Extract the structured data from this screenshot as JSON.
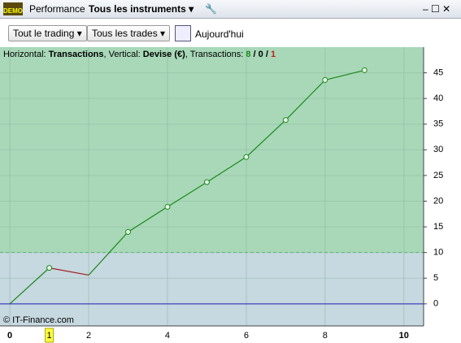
{
  "toolbar": {
    "tab": "Performance",
    "instrument": "Tous les instruments",
    "filter1": "Tout le trading",
    "filter2": "Tous les trades",
    "date": "Aujourd'hui"
  },
  "chart_data": {
    "type": "line",
    "header": {
      "h_label": "Horizontal: ",
      "h_value": "Transactions",
      "v_label": ", Vertical: ",
      "v_value": "Devise (€)",
      "t_label": ", Transactions: ",
      "wins": "8",
      "sep1": " / ",
      "even": "0",
      "sep2": " / ",
      "losses": "1"
    },
    "copyright": "© IT-Finance.com",
    "x": [
      0,
      1,
      2,
      3,
      4,
      5,
      6,
      7,
      8,
      9
    ],
    "series": [
      {
        "name": "Performance",
        "color": "#1a8a1a",
        "down_color": "#a02020",
        "values": [
          0,
          7.0,
          5.6,
          14.0,
          18.9,
          23.7,
          28.6,
          35.8,
          43.6,
          45.5
        ]
      }
    ],
    "xlim": [
      -0.25,
      10.5
    ],
    "ylim": [
      -4.3,
      50
    ],
    "xticks": [
      0,
      1,
      2,
      4,
      6,
      8,
      10
    ],
    "yticks": [
      0,
      5,
      10,
      15,
      20,
      25,
      30,
      35,
      40,
      45
    ],
    "highlight_xtick": 1,
    "threshold": 10,
    "above_color": "#a8d8b8",
    "below_color": "#c6d8e0",
    "grid": true
  }
}
